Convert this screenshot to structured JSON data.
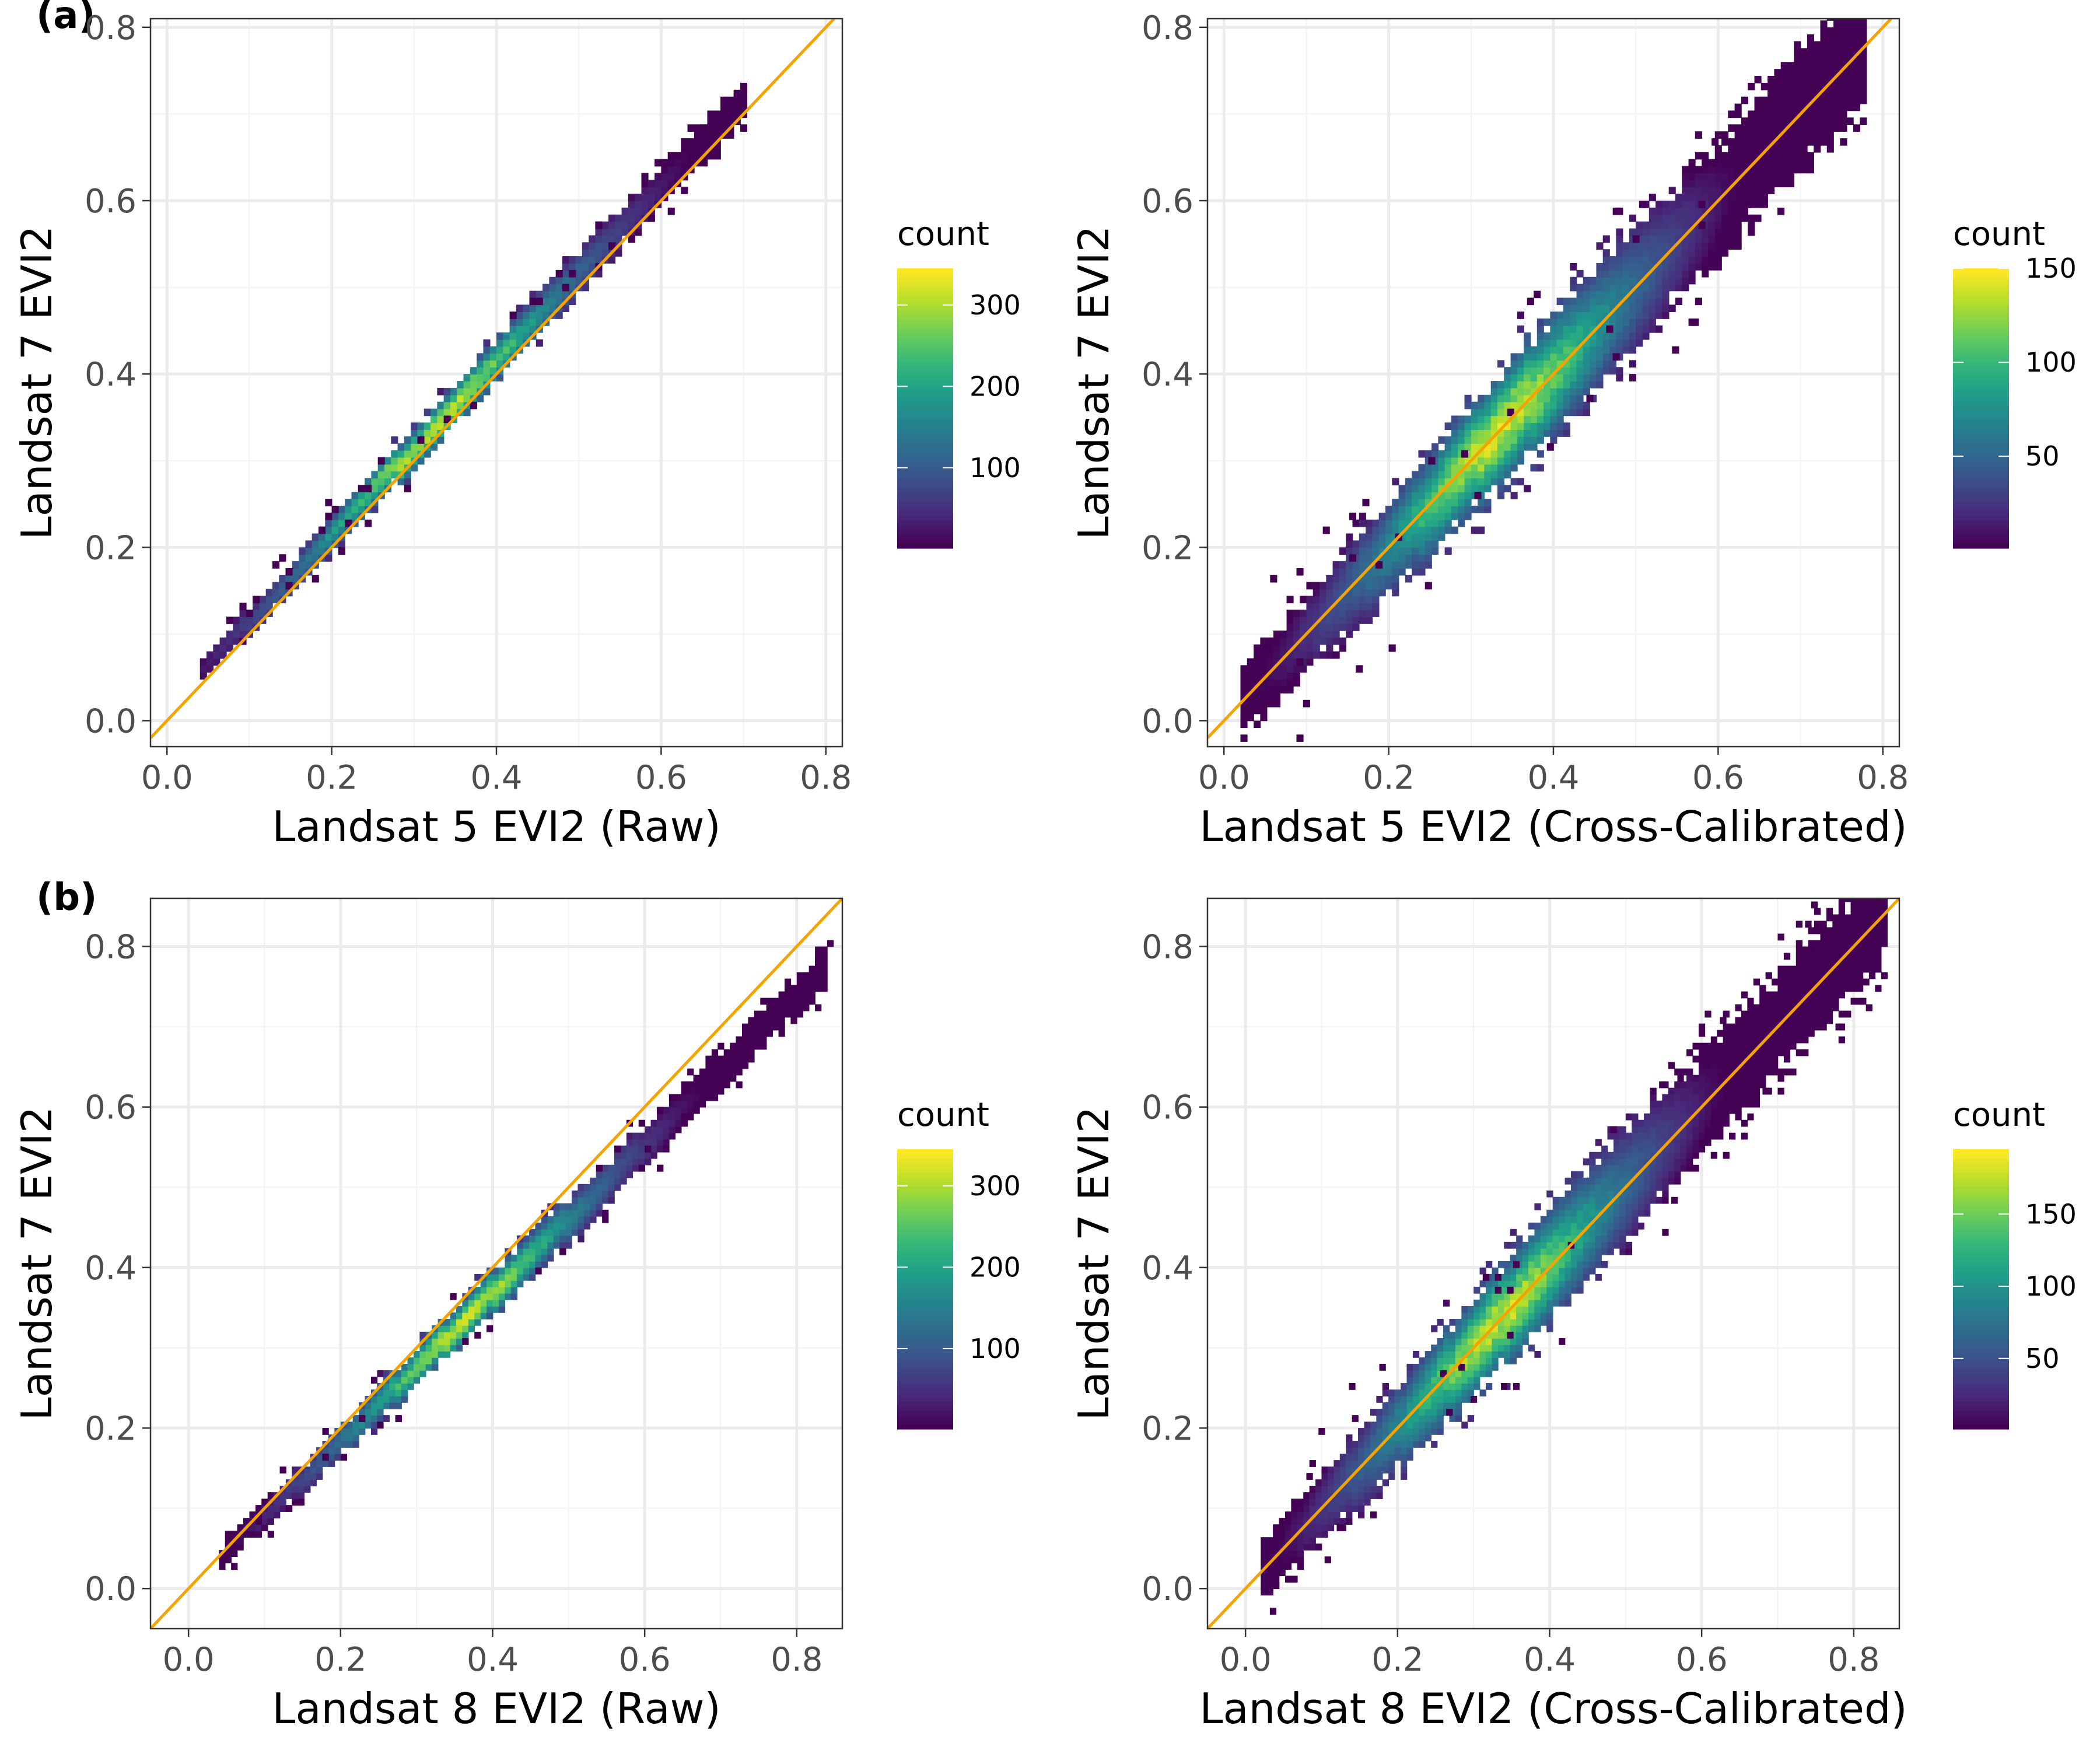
{
  "panel_tags": [
    "(a)",
    "(b)"
  ],
  "colors": {
    "identity_line": "#f5a300",
    "viridis": [
      "#440154",
      "#482878",
      "#3e4a89",
      "#31688e",
      "#26828e",
      "#1f9e89",
      "#35b779",
      "#6ece58",
      "#b5de2b",
      "#fde725"
    ]
  },
  "chart_data": [
    {
      "type": "heatmap",
      "panel": "(a)",
      "xlabel": "Landsat 5  EVI2 (Raw)",
      "ylabel": "Landsat 7  EVI2",
      "xlim": [
        -0.02,
        0.82
      ],
      "ylim": [
        -0.03,
        0.81
      ],
      "xticks": [
        "0.0",
        "0.2",
        "0.4",
        "0.6",
        "0.8"
      ],
      "yticks": [
        "0.0",
        "0.2",
        "0.4",
        "0.6",
        "0.8"
      ],
      "grid": true,
      "reference_line": {
        "slope": 1,
        "intercept": 0
      },
      "density": {
        "slope": 1.0,
        "intercept": 0.015,
        "spread": 0.009,
        "x_range": [
          0.04,
          0.7
        ],
        "peak_at": 0.32
      },
      "legend": {
        "title": "count",
        "ticks": [
          "100",
          "200",
          "300"
        ],
        "tick_values": [
          100,
          200,
          300
        ],
        "range": [
          1,
          345
        ],
        "position": "right"
      }
    },
    {
      "type": "heatmap",
      "panel": "(a)",
      "xlabel": "Landsat 5  EVI2 (Cross-Calibrated)",
      "ylabel": "Landsat 7  EVI2",
      "xlim": [
        -0.02,
        0.82
      ],
      "ylim": [
        -0.03,
        0.81
      ],
      "xticks": [
        "0.0",
        "0.2",
        "0.4",
        "0.6",
        "0.8"
      ],
      "yticks": [
        "0.0",
        "0.2",
        "0.4",
        "0.6",
        "0.8"
      ],
      "grid": true,
      "reference_line": {
        "slope": 1,
        "intercept": 0
      },
      "density": {
        "slope": 1.0,
        "intercept": 0.0,
        "spread": 0.026,
        "x_range": [
          0.02,
          0.78
        ],
        "peak_at": 0.33
      },
      "legend": {
        "title": "count",
        "ticks": [
          "50",
          "100",
          "150"
        ],
        "tick_values": [
          50,
          100,
          150
        ],
        "range": [
          1,
          150
        ],
        "position": "right"
      }
    },
    {
      "type": "heatmap",
      "panel": "(b)",
      "xlabel": "Landsat 8  EVI2 (Raw)",
      "ylabel": "Landsat 7  EVI2",
      "xlim": [
        -0.05,
        0.86
      ],
      "ylim": [
        -0.05,
        0.86
      ],
      "xticks": [
        "0.0",
        "0.2",
        "0.4",
        "0.6",
        "0.8"
      ],
      "yticks": [
        "0.0",
        "0.2",
        "0.4",
        "0.6",
        "0.8"
      ],
      "grid": true,
      "reference_line": {
        "slope": 1,
        "intercept": 0
      },
      "density": {
        "slope": 0.92,
        "intercept": 0.0,
        "spread": 0.01,
        "x_range": [
          0.04,
          0.84
        ],
        "peak_at": 0.36
      },
      "legend": {
        "title": "count",
        "ticks": [
          "100",
          "200",
          "300"
        ],
        "tick_values": [
          100,
          200,
          300
        ],
        "range": [
          1,
          345
        ],
        "position": "right"
      }
    },
    {
      "type": "heatmap",
      "panel": "(b)",
      "xlabel": "Landsat 8  EVI2 (Cross-Calibrated)",
      "ylabel": "Landsat 7  EVI2",
      "xlim": [
        -0.05,
        0.86
      ],
      "ylim": [
        -0.05,
        0.86
      ],
      "xticks": [
        "0.0",
        "0.2",
        "0.4",
        "0.6",
        "0.8"
      ],
      "yticks": [
        "0.0",
        "0.2",
        "0.4",
        "0.6",
        "0.8"
      ],
      "grid": true,
      "reference_line": {
        "slope": 1,
        "intercept": 0
      },
      "density": {
        "slope": 1.0,
        "intercept": 0.0,
        "spread": 0.025,
        "x_range": [
          0.02,
          0.84
        ],
        "peak_at": 0.33
      },
      "legend": {
        "title": "count",
        "ticks": [
          "50",
          "100",
          "150"
        ],
        "tick_values": [
          50,
          100,
          150
        ],
        "range": [
          1,
          195
        ],
        "position": "right"
      }
    }
  ]
}
